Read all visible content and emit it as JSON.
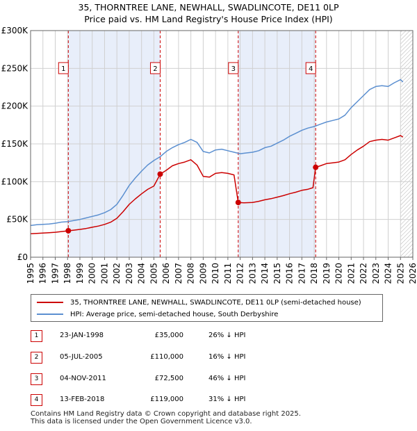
{
  "title_line1": "35, THORNTREE LANE, NEWHALL, SWADLINCOTE, DE11 0LP",
  "title_line2": "Price paid vs. HM Land Registry's House Price Index (HPI)",
  "chart_data": {
    "type": "line",
    "title": "35, THORNTREE LANE, NEWHALL, SWADLINCOTE, DE11 0LP — Price paid vs. HM Land Registry's House Price Index (HPI)",
    "xlabel": "",
    "ylabel": "",
    "xlim": [
      1995,
      2026
    ],
    "ylim": [
      0,
      300000
    ],
    "x_ticks": [
      "1995",
      "1996",
      "1997",
      "1998",
      "1999",
      "2000",
      "2001",
      "2002",
      "2003",
      "2004",
      "2005",
      "2006",
      "2007",
      "2008",
      "2009",
      "2010",
      "2011",
      "2012",
      "2013",
      "2014",
      "2015",
      "2016",
      "2017",
      "2018",
      "2019",
      "2020",
      "2021",
      "2022",
      "2023",
      "2024",
      "2025",
      "2026"
    ],
    "y_ticks": [
      {
        "value": 0,
        "label": "£0"
      },
      {
        "value": 50000,
        "label": "£50K"
      },
      {
        "value": 100000,
        "label": "£100K"
      },
      {
        "value": 150000,
        "label": "£150K"
      },
      {
        "value": 200000,
        "label": "£200K"
      },
      {
        "value": 250000,
        "label": "£250K"
      },
      {
        "value": 300000,
        "label": "£300K"
      }
    ],
    "shaded_spans": [
      [
        1998.06,
        2005.51
      ],
      [
        2011.84,
        2018.12
      ]
    ],
    "hatched_from": 2025.0,
    "series": [
      {
        "name": "HPI: Average price, semi-detached house, South Derbyshire",
        "color": "#5b8fd0",
        "x": [
          1995.0,
          1995.5,
          1996.0,
          1996.5,
          1997.0,
          1997.5,
          1998.0,
          1998.5,
          1999.0,
          1999.5,
          2000.0,
          2000.5,
          2001.0,
          2001.5,
          2002.0,
          2002.5,
          2003.0,
          2003.5,
          2004.0,
          2004.5,
          2005.0,
          2005.5,
          2006.0,
          2006.5,
          2007.0,
          2007.5,
          2008.0,
          2008.5,
          2009.0,
          2009.5,
          2010.0,
          2010.5,
          2011.0,
          2011.5,
          2012.0,
          2012.5,
          2013.0,
          2013.5,
          2014.0,
          2014.5,
          2015.0,
          2015.5,
          2016.0,
          2016.5,
          2017.0,
          2017.5,
          2018.0,
          2018.5,
          2019.0,
          2019.5,
          2020.0,
          2020.5,
          2021.0,
          2021.5,
          2022.0,
          2022.5,
          2023.0,
          2023.5,
          2024.0,
          2024.5,
          2025.0,
          2025.2
        ],
        "y": [
          42000,
          43000,
          43500,
          44000,
          45000,
          46500,
          47000,
          48500,
          50000,
          52000,
          54000,
          56000,
          59000,
          63000,
          70000,
          82000,
          95000,
          105000,
          114000,
          122000,
          128000,
          133000,
          140000,
          145000,
          149000,
          152000,
          156000,
          152000,
          140000,
          138000,
          142000,
          143000,
          141000,
          139000,
          137000,
          138000,
          139000,
          141000,
          145000,
          147000,
          151000,
          155000,
          160000,
          164000,
          168000,
          171000,
          173000,
          176000,
          179000,
          181000,
          183000,
          188000,
          198000,
          206000,
          214000,
          222000,
          226000,
          227000,
          226000,
          231000,
          235000,
          232000
        ]
      },
      {
        "name": "35, THORNTREE LANE, NEWHALL, SWADLINCOTE, DE11 0LP (semi-detached house)",
        "color": "#cc0000",
        "x": [
          1995.0,
          1995.5,
          1996.0,
          1996.5,
          1997.0,
          1997.5,
          1998.06,
          1998.5,
          1999.0,
          1999.5,
          2000.0,
          2000.5,
          2001.0,
          2001.5,
          2002.0,
          2002.5,
          2003.0,
          2003.5,
          2004.0,
          2004.5,
          2005.0,
          2005.51,
          2006.0,
          2006.5,
          2007.0,
          2007.5,
          2008.0,
          2008.5,
          2009.0,
          2009.5,
          2010.0,
          2010.5,
          2011.0,
          2011.5,
          2011.84,
          2012.3,
          2013.0,
          2013.5,
          2014.0,
          2014.5,
          2015.0,
          2015.5,
          2016.0,
          2016.5,
          2017.0,
          2017.5,
          2017.9,
          2018.12,
          2018.5,
          2019.0,
          2019.5,
          2020.0,
          2020.5,
          2021.0,
          2021.5,
          2022.0,
          2022.5,
          2023.0,
          2023.5,
          2024.0,
          2024.5,
          2025.0,
          2025.2
        ],
        "y": [
          31000,
          31500,
          32000,
          32500,
          33000,
          34000,
          35000,
          35800,
          36800,
          38000,
          39700,
          41200,
          43400,
          46400,
          51500,
          60300,
          69900,
          77300,
          83900,
          89800,
          94200,
          110000,
          115000,
          121000,
          124000,
          126000,
          129000,
          122000,
          107000,
          106000,
          111000,
          112000,
          111000,
          109000,
          72500,
          72000,
          72500,
          74000,
          76000,
          77500,
          79500,
          81500,
          84000,
          86000,
          88500,
          90000,
          92000,
          119000,
          121000,
          124000,
          125000,
          126000,
          129000,
          136000,
          142000,
          147000,
          153000,
          155000,
          156000,
          155000,
          158000,
          161000,
          159000
        ]
      }
    ],
    "sales": [
      {
        "n": "1",
        "x": 1998.06,
        "y": 35000
      },
      {
        "n": "2",
        "x": 2005.51,
        "y": 110000
      },
      {
        "n": "3",
        "x": 2011.84,
        "y": 72500
      },
      {
        "n": "4",
        "x": 2018.12,
        "y": 119000
      }
    ]
  },
  "legend": {
    "property": "35, THORNTREE LANE, NEWHALL, SWADLINCOTE, DE11 0LP (semi-detached house)",
    "hpi": "HPI: Average price, semi-detached house, South Derbyshire",
    "property_color": "#cc0000",
    "hpi_color": "#5b8fd0"
  },
  "sales_table": [
    {
      "n": "1",
      "date": "23-JAN-1998",
      "price": "£35,000",
      "hpi": "26% ↓ HPI"
    },
    {
      "n": "2",
      "date": "05-JUL-2005",
      "price": "£110,000",
      "hpi": "16% ↓ HPI"
    },
    {
      "n": "3",
      "date": "04-NOV-2011",
      "price": "£72,500",
      "hpi": "46% ↓ HPI"
    },
    {
      "n": "4",
      "date": "13-FEB-2018",
      "price": "£119,000",
      "hpi": "31% ↓ HPI"
    }
  ],
  "footer_line1": "Contains HM Land Registry data © Crown copyright and database right 2025.",
  "footer_line2": "This data is licensed under the Open Government Licence v3.0."
}
